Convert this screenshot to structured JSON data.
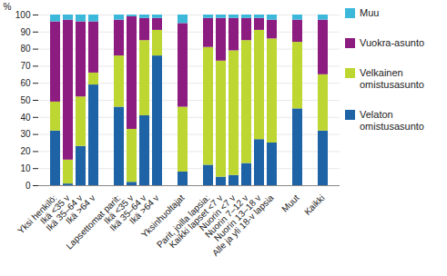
{
  "chart_data": {
    "type": "bar",
    "stacked": true,
    "grid": true,
    "legend": "right",
    "y_label": "%",
    "ylim": [
      0,
      100
    ],
    "yticks": [
      0,
      10,
      20,
      30,
      40,
      50,
      60,
      70,
      80,
      90,
      100
    ],
    "categories": [
      "Yksi henkilö:",
      "Ikä <35 v",
      "Ikä 35–64 v",
      "Ikä >64 v",
      null,
      "Lapsettomat parit:",
      "Ikä <35 v",
      "Ikä 35–64 v",
      "Ikä >64 v",
      null,
      "Yksinhuoltajat",
      null,
      "Parit, joilla lapsia:",
      "Kaikki lapset <7 v",
      "Nuorin <7 v",
      "Nuorin 7–12 v",
      "Nuorin 13–18 v",
      "Alle ja yli 18-v lapsia",
      null,
      "Muut",
      null,
      "Kaikki"
    ],
    "series": [
      {
        "name": "Velaton omistusasunto",
        "color": "#1d63a6",
        "values": [
          32,
          1,
          23,
          59,
          null,
          46,
          2,
          41,
          76,
          null,
          8,
          null,
          12,
          5,
          6,
          13,
          27,
          25,
          null,
          45,
          null,
          32
        ]
      },
      {
        "name": "Velkainen omistusasunto",
        "color": "#bdd631",
        "values": [
          17,
          14,
          29,
          7,
          null,
          30,
          31,
          44,
          15,
          null,
          38,
          null,
          69,
          68,
          73,
          72,
          64,
          61,
          null,
          39,
          null,
          33
        ]
      },
      {
        "name": "Vuokra-asunto",
        "color": "#8c1c80",
        "values": [
          47,
          82,
          44,
          30,
          null,
          21,
          66,
          13,
          7,
          null,
          49,
          null,
          17,
          25,
          19,
          13,
          7,
          11,
          null,
          13,
          null,
          32
        ]
      },
      {
        "name": "Muu",
        "color": "#3bb8da",
        "values": [
          4,
          3,
          4,
          4,
          null,
          3,
          1,
          2,
          2,
          null,
          5,
          null,
          2,
          2,
          2,
          2,
          2,
          3,
          null,
          3,
          null,
          3
        ]
      }
    ]
  }
}
